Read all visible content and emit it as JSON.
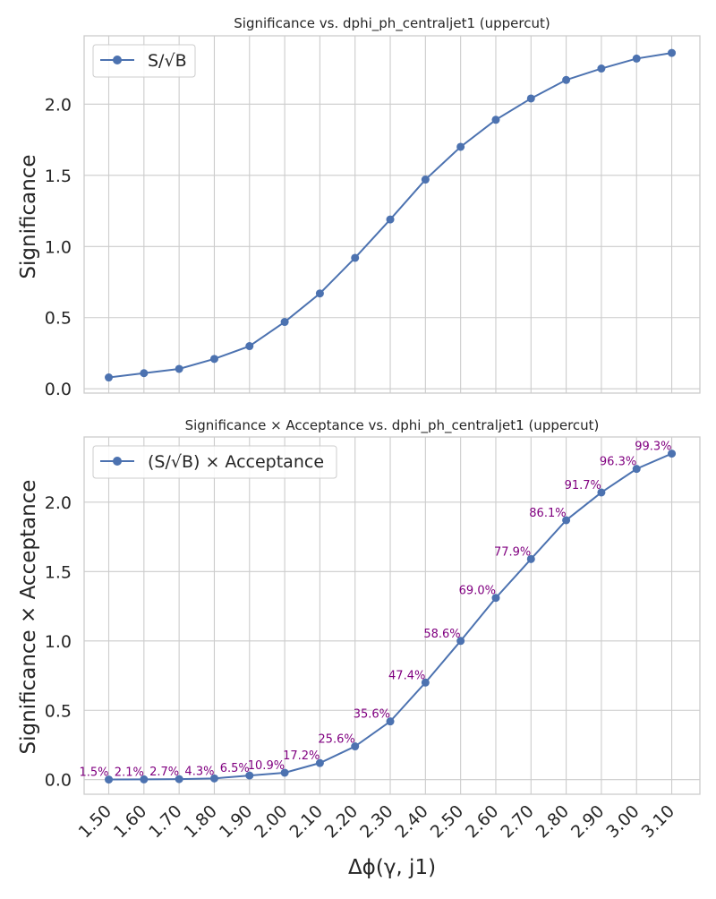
{
  "chart_data": [
    {
      "type": "line",
      "title": "Significance vs. dphi_ph_centraljet1 (uppercut)",
      "xlabel": "",
      "ylabel": "Significance",
      "x": [
        1.5,
        1.6,
        1.7,
        1.8,
        1.9,
        2.0,
        2.1,
        2.2,
        2.3,
        2.4,
        2.5,
        2.6,
        2.7,
        2.8,
        2.9,
        3.0,
        3.1
      ],
      "series": [
        {
          "name": "S/√B",
          "values": [
            0.08,
            0.11,
            0.14,
            0.21,
            0.3,
            0.47,
            0.67,
            0.92,
            1.19,
            1.47,
            1.7,
            1.89,
            2.04,
            2.17,
            2.25,
            2.32,
            2.36
          ]
        }
      ],
      "xlim": [
        1.43,
        3.18
      ],
      "ylim": [
        -0.03,
        2.48
      ],
      "yticks": [
        "0.0",
        "0.5",
        "1.0",
        "1.5",
        "2.0"
      ],
      "legend": "top-left",
      "grid": true,
      "colors": {
        "line": "#4c72b0"
      }
    },
    {
      "type": "line",
      "title": "Significance × Acceptance vs. dphi_ph_centraljet1 (uppercut)",
      "xlabel": "Δϕ(γ, j1)",
      "ylabel": "Significance × Acceptance",
      "x": [
        1.5,
        1.6,
        1.7,
        1.8,
        1.9,
        2.0,
        2.1,
        2.2,
        2.3,
        2.4,
        2.5,
        2.6,
        2.7,
        2.8,
        2.9,
        3.0,
        3.1
      ],
      "xticks": [
        "1.50",
        "1.60",
        "1.70",
        "1.80",
        "1.90",
        "2.00",
        "2.10",
        "2.20",
        "2.30",
        "2.40",
        "2.50",
        "2.60",
        "2.70",
        "2.80",
        "2.90",
        "3.00",
        "3.10"
      ],
      "series": [
        {
          "name": "(S/√B) × Acceptance",
          "values": [
            0.001,
            0.002,
            0.004,
            0.009,
            0.03,
            0.05,
            0.12,
            0.24,
            0.42,
            0.7,
            1.0,
            1.31,
            1.59,
            1.87,
            2.07,
            2.24,
            2.35
          ]
        }
      ],
      "annotations": [
        "1.5%",
        "2.1%",
        "2.7%",
        "4.3%",
        "6.5%",
        "10.9%",
        "17.2%",
        "25.6%",
        "35.6%",
        "47.4%",
        "58.6%",
        "69.0%",
        "77.9%",
        "86.1%",
        "91.7%",
        "96.3%",
        "99.3%"
      ],
      "xlim": [
        1.43,
        3.18
      ],
      "ylim": [
        -0.105,
        2.47
      ],
      "yticks": [
        "0.0",
        "0.5",
        "1.0",
        "1.5",
        "2.0"
      ],
      "legend": "top-left",
      "grid": true,
      "colors": {
        "line": "#4c72b0",
        "annotation": "#800080"
      }
    }
  ]
}
